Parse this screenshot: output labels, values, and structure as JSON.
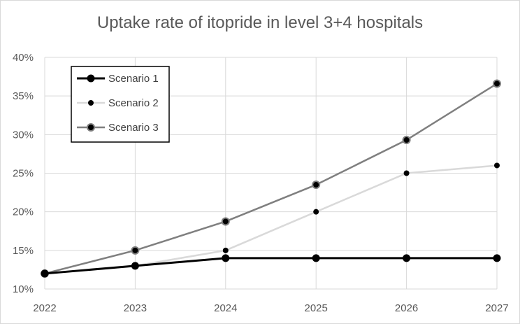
{
  "chart_data": {
    "type": "line",
    "title": "Uptake rate of itopride in level 3+4 hospitals",
    "xlabel": "",
    "ylabel": "",
    "x": [
      "2022",
      "2023",
      "2024",
      "2025",
      "2026",
      "2027"
    ],
    "ylim": [
      0.1,
      0.4
    ],
    "yticks": [
      0.1,
      0.15,
      0.2,
      0.25,
      0.3,
      0.35,
      0.4
    ],
    "ytick_labels": [
      "10%",
      "15%",
      "20%",
      "25%",
      "30%",
      "35%",
      "40%"
    ],
    "grid": true,
    "legend_position": "top-left",
    "series": [
      {
        "name": "Scenario 1",
        "values": [
          0.12,
          0.13,
          0.14,
          0.14,
          0.14,
          0.14
        ],
        "color": "#000000",
        "line_style": "thick",
        "marker": "large-black"
      },
      {
        "name": "Scenario 2",
        "values": [
          0.12,
          0.13,
          0.15,
          0.2,
          0.25,
          0.26
        ],
        "color": "#d9d9d9",
        "line_style": "thin",
        "marker": "small-black"
      },
      {
        "name": "Scenario 3",
        "values": [
          0.12,
          0.15,
          0.1875,
          0.235,
          0.293,
          0.366
        ],
        "color": "#7f7f7f",
        "line_style": "medium",
        "marker": "grey-ring"
      }
    ]
  }
}
